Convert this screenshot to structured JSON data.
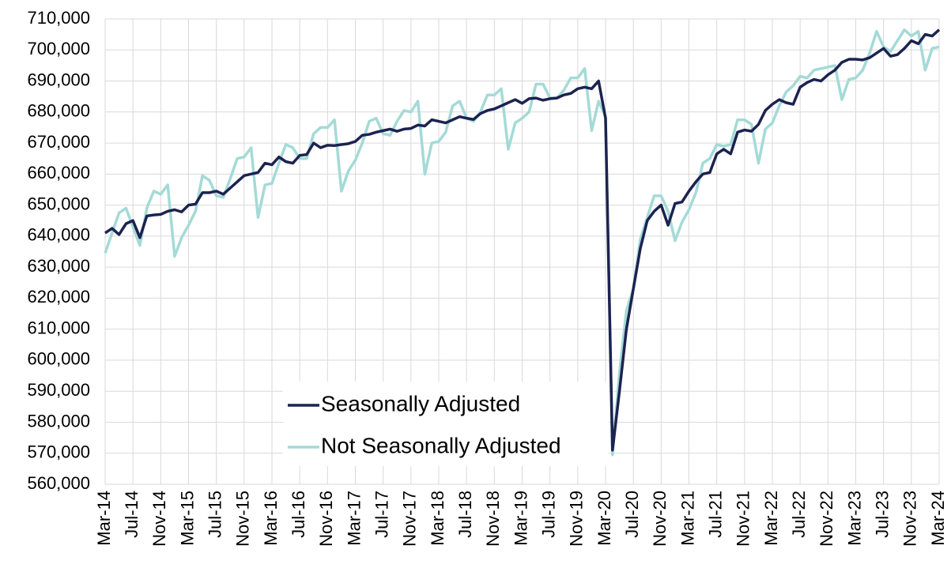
{
  "chart_data": {
    "type": "line",
    "categories": [
      "Mar-14",
      null,
      null,
      null,
      "Jul-14",
      null,
      null,
      null,
      "Nov-14",
      null,
      null,
      null,
      "Mar-15",
      null,
      null,
      null,
      "Jul-15",
      null,
      null,
      null,
      "Nov-15",
      null,
      null,
      null,
      "Mar-16",
      null,
      null,
      null,
      "Jul-16",
      null,
      null,
      null,
      "Nov-16",
      null,
      null,
      null,
      "Mar-17",
      null,
      null,
      null,
      "Jul-17",
      null,
      null,
      null,
      "Nov-17",
      null,
      null,
      null,
      "Mar-18",
      null,
      null,
      null,
      "Jul-18",
      null,
      null,
      null,
      "Nov-18",
      null,
      null,
      null,
      "Mar-19",
      null,
      null,
      null,
      "Jul-19",
      null,
      null,
      null,
      "Nov-19",
      null,
      null,
      null,
      "Mar-20",
      null,
      null,
      null,
      "Jul-20",
      null,
      null,
      null,
      "Nov-20",
      null,
      null,
      null,
      "Mar-21",
      null,
      null,
      null,
      "Jul-21",
      null,
      null,
      null,
      "Nov-21",
      null,
      null,
      null,
      "Mar-22",
      null,
      null,
      null,
      "Jul-22",
      null,
      null,
      null,
      "Nov-22",
      null,
      null,
      null,
      "Mar-23",
      null,
      null,
      null,
      "Jul-23",
      null,
      null,
      null,
      "Nov-23",
      null,
      null,
      null,
      "Mar-24"
    ],
    "series": [
      {
        "name": "Seasonally Adjusted",
        "color": "#1c2350",
        "values": [
          641000,
          642500,
          640500,
          644000,
          645000,
          639500,
          646500,
          646800,
          647000,
          648000,
          648500,
          647800,
          650000,
          650300,
          654000,
          654000,
          654500,
          653500,
          655500,
          657500,
          659500,
          660000,
          660500,
          663500,
          663000,
          665500,
          664000,
          663500,
          666000,
          666300,
          670000,
          668500,
          669300,
          669200,
          669500,
          669800,
          670500,
          672500,
          672800,
          673500,
          674000,
          674500,
          673800,
          674500,
          674700,
          675800,
          675500,
          677500,
          677000,
          676500,
          677500,
          678500,
          678000,
          677600,
          679500,
          680500,
          681000,
          682000,
          683000,
          684000,
          682800,
          684300,
          684500,
          683800,
          684300,
          684500,
          685500,
          686000,
          687500,
          688000,
          687500,
          690000,
          678000,
          571000,
          590000,
          610000,
          623000,
          636000,
          645000,
          648000,
          650000,
          643500,
          650500,
          651000,
          654500,
          657500,
          660000,
          660500,
          666500,
          668000,
          666500,
          673500,
          674200,
          673800,
          676000,
          680500,
          682500,
          684000,
          683000,
          682500,
          688000,
          689500,
          690500,
          690000,
          692000,
          693500,
          696000,
          697000,
          697000,
          696800,
          697500,
          699000,
          700500,
          698000,
          698500,
          700500,
          703000,
          702000,
          705000,
          704500,
          706500
        ]
      },
      {
        "name": "Not Seasonally Adjusted",
        "color": "#a4dad7",
        "values": [
          634500,
          641000,
          647500,
          649000,
          643000,
          637000,
          649000,
          654500,
          653500,
          656500,
          633500,
          639500,
          643500,
          648000,
          659500,
          658000,
          653000,
          652500,
          658500,
          665000,
          665500,
          668500,
          646000,
          656500,
          657000,
          663500,
          669500,
          668500,
          665000,
          665000,
          673000,
          675000,
          675000,
          677500,
          654500,
          661000,
          664500,
          670000,
          677000,
          678000,
          673000,
          672500,
          677000,
          680500,
          680000,
          683500,
          660000,
          670000,
          670500,
          673500,
          682000,
          683500,
          678000,
          677000,
          680000,
          685500,
          685500,
          687500,
          668000,
          676500,
          678000,
          680000,
          689000,
          689000,
          684500,
          684500,
          687000,
          691000,
          691000,
          694000,
          674000,
          683500,
          678500,
          569500,
          596000,
          616000,
          623000,
          639000,
          646000,
          653000,
          653000,
          648000,
          638500,
          644500,
          648500,
          654000,
          663500,
          665000,
          669500,
          669000,
          669500,
          677500,
          677500,
          676000,
          663500,
          674500,
          676500,
          682000,
          686500,
          688500,
          691500,
          691000,
          693500,
          694000,
          694500,
          695000,
          684000,
          690500,
          691000,
          693500,
          699000,
          706000,
          701000,
          699500,
          703000,
          706500,
          704500,
          706000,
          693500,
          700500,
          701000
        ]
      }
    ],
    "ylim": [
      560000,
      710000
    ],
    "yticks": [
      {
        "value": 560000,
        "label": "560,000"
      },
      {
        "value": 570000,
        "label": "570,000"
      },
      {
        "value": 580000,
        "label": "580,000"
      },
      {
        "value": 590000,
        "label": "590,000"
      },
      {
        "value": 600000,
        "label": "600,000"
      },
      {
        "value": 610000,
        "label": "610,000"
      },
      {
        "value": 620000,
        "label": "620,000"
      },
      {
        "value": 630000,
        "label": "630,000"
      },
      {
        "value": 640000,
        "label": "640,000"
      },
      {
        "value": 650000,
        "label": "650,000"
      },
      {
        "value": 660000,
        "label": "660,000"
      },
      {
        "value": 670000,
        "label": "670,000"
      },
      {
        "value": 680000,
        "label": "680,000"
      },
      {
        "value": 690000,
        "label": "690,000"
      },
      {
        "value": 700000,
        "label": "700,000"
      },
      {
        "value": 710000,
        "label": "710,000"
      }
    ],
    "grid": true,
    "legend": "lower center"
  }
}
